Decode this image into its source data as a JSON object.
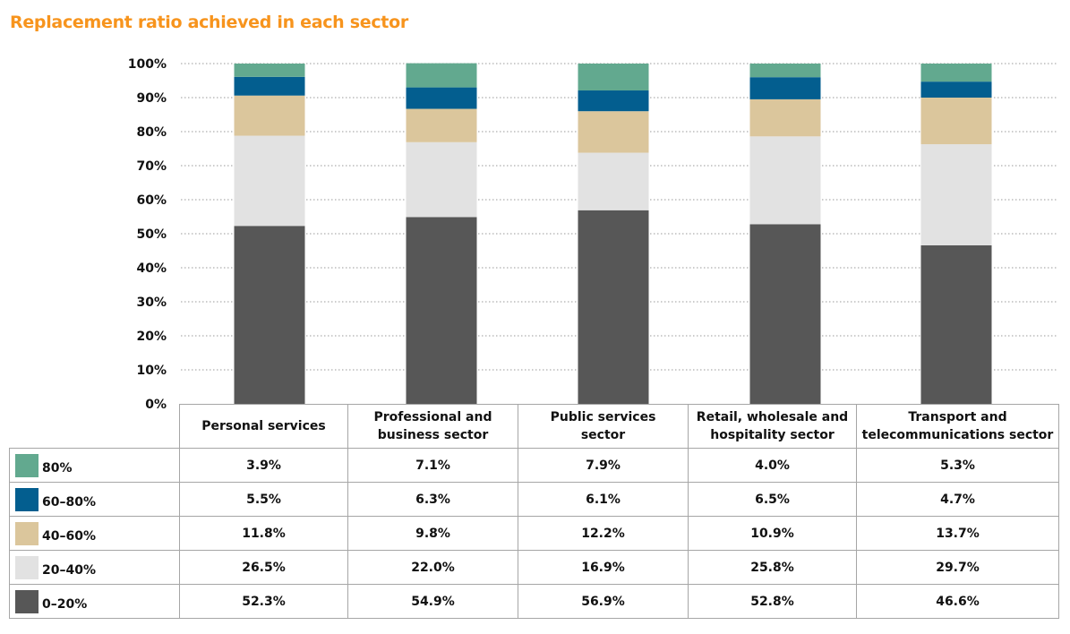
{
  "chart_data": {
    "type": "bar",
    "stacked": true,
    "title": "Replacement ratio achieved in each sector",
    "categories": [
      "Personal services",
      "Professional and business sector",
      "Public services sector",
      "Retail, wholesale and hospitality sector",
      "Transport and telecommunications sector"
    ],
    "series": [
      {
        "name": "0–20%",
        "color": "#575757",
        "values": [
          52.3,
          54.9,
          56.9,
          52.8,
          46.6
        ],
        "labels": [
          "52.3%",
          "54.9%",
          "56.9%",
          "52.8%",
          "46.6%"
        ]
      },
      {
        "name": "20–40%",
        "color": "#e2e2e2",
        "values": [
          26.5,
          22.0,
          16.9,
          25.8,
          29.7
        ],
        "labels": [
          "26.5%",
          "22.0%",
          "16.9%",
          "25.8%",
          "29.7%"
        ]
      },
      {
        "name": "40–60%",
        "color": "#dbc69c",
        "values": [
          11.8,
          9.8,
          12.2,
          10.9,
          13.7
        ],
        "labels": [
          "11.8%",
          "9.8%",
          "12.2%",
          "10.9%",
          "13.7%"
        ]
      },
      {
        "name": "60–80%",
        "color": "#035e8f",
        "values": [
          5.5,
          6.3,
          6.1,
          6.5,
          4.7
        ],
        "labels": [
          "5.5%",
          "6.3%",
          "6.1%",
          "6.5%",
          "4.7%"
        ]
      },
      {
        "name": "80%",
        "color": "#62a98f",
        "values": [
          3.9,
          7.1,
          7.9,
          4.0,
          5.3
        ],
        "labels": [
          "3.9%",
          "7.1%",
          "7.9%",
          "4.0%",
          "5.3%"
        ]
      }
    ],
    "category_headers": [
      [
        "Personal services"
      ],
      [
        "Professional and",
        "business sector"
      ],
      [
        "Public services",
        "sector"
      ],
      [
        "Retail, wholesale and",
        "hospitality sector"
      ],
      [
        "Transport and",
        "telecommunications sector"
      ]
    ],
    "yticks": [
      "0%",
      "10%",
      "20%",
      "30%",
      "40%",
      "50%",
      "60%",
      "70%",
      "80%",
      "90%",
      "100%"
    ],
    "ylim": [
      0,
      100
    ],
    "grid": "dotted horizontal",
    "legend": "data-table-left",
    "title_color": "#f7941d"
  }
}
